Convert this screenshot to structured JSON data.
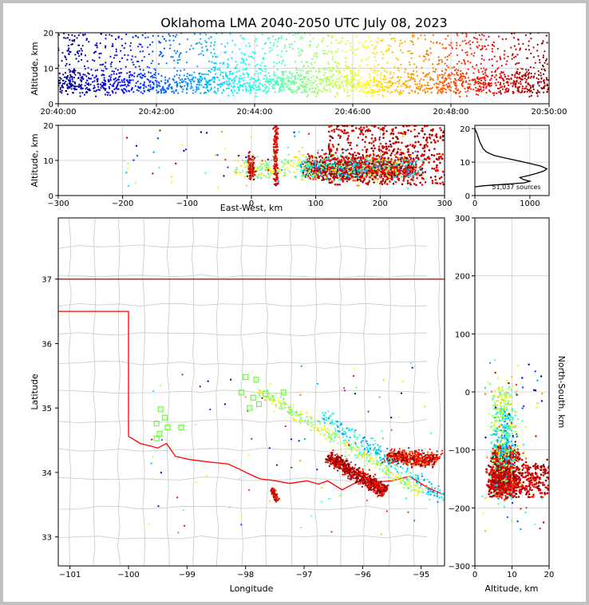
{
  "title": "Oklahoma LMA 2040-2050 UTC July 08, 2023",
  "chart_data": [
    {
      "panel": "time-altitude",
      "type": "scatter",
      "color_scale": "jet (by time)",
      "xlabel": "",
      "ylabel": "Altitude, km",
      "x_range": [
        "20:40:00",
        "20:50:00"
      ],
      "x_ticks": [
        "20:40:00",
        "20:42:00",
        "20:44:00",
        "20:46:00",
        "20:48:00",
        "20:50:00"
      ],
      "ylim": [
        0,
        20
      ],
      "y_ticks": [
        "0",
        "10",
        "20"
      ],
      "grid": true
    },
    {
      "panel": "east-west-altitude",
      "type": "scatter",
      "xlabel": "East-West, km",
      "ylabel": "Altitude, km",
      "xlim": [
        -300,
        300
      ],
      "x_ticks": [
        "−300",
        "−200",
        "−100",
        "0",
        "100",
        "200",
        "300"
      ],
      "ylim": [
        0,
        20
      ],
      "y_ticks": [
        "0",
        "10",
        "20"
      ],
      "grid": true
    },
    {
      "panel": "altitude-histogram",
      "type": "line",
      "xlabel": "",
      "ylabel": "",
      "xlim": [
        0,
        1350
      ],
      "x_ticks": [
        "0",
        "1000"
      ],
      "ylim": [
        0,
        21
      ],
      "y_ticks": [
        "0",
        "10",
        "20"
      ],
      "annotation": "51,037 sources",
      "profile": [
        {
          "alt": 2.6,
          "count": 0
        },
        {
          "alt": 2.9,
          "count": 150
        },
        {
          "alt": 3.4,
          "count": 550
        },
        {
          "alt": 3.8,
          "count": 900
        },
        {
          "alt": 4.3,
          "count": 1000
        },
        {
          "alt": 4.8,
          "count": 880
        },
        {
          "alt": 5.4,
          "count": 820
        },
        {
          "alt": 6.0,
          "count": 980
        },
        {
          "alt": 6.6,
          "count": 1120
        },
        {
          "alt": 7.3,
          "count": 1250
        },
        {
          "alt": 8.0,
          "count": 1310
        },
        {
          "alt": 8.8,
          "count": 1200
        },
        {
          "alt": 9.6,
          "count": 1000
        },
        {
          "alt": 10.4,
          "count": 780
        },
        {
          "alt": 11.2,
          "count": 560
        },
        {
          "alt": 12.0,
          "count": 350
        },
        {
          "alt": 13.0,
          "count": 210
        },
        {
          "alt": 14.0,
          "count": 150
        },
        {
          "alt": 15.0,
          "count": 120
        },
        {
          "alt": 16.0,
          "count": 90
        },
        {
          "alt": 17.0,
          "count": 70
        },
        {
          "alt": 18.0,
          "count": 50
        },
        {
          "alt": 18.7,
          "count": 35
        },
        {
          "alt": 19.4,
          "count": 15
        },
        {
          "alt": 20.0,
          "count": 0
        }
      ]
    },
    {
      "panel": "plan-view",
      "type": "scatter",
      "xlabel": "Longitude",
      "ylabel": "Latitude",
      "xlim": [
        -101.2,
        -94.6
      ],
      "x_ticks": [
        "−101",
        "−100",
        "−99",
        "−98",
        "−97",
        "−96",
        "−95"
      ],
      "ylim": [
        32.55,
        37.95
      ],
      "y_ticks": [
        "33",
        "34",
        "35",
        "36",
        "37"
      ],
      "marker_colors": {
        "state_border": "#ff0000",
        "county_lines": "#c8c8c8",
        "stations": "#66ff33"
      },
      "stations": [
        {
          "lon": -99.45,
          "lat": 34.98
        },
        {
          "lon": -99.38,
          "lat": 34.85
        },
        {
          "lon": -99.52,
          "lat": 34.76
        },
        {
          "lon": -99.33,
          "lat": 34.7
        },
        {
          "lon": -99.47,
          "lat": 34.6
        },
        {
          "lon": -99.52,
          "lat": 34.53
        },
        {
          "lon": -99.1,
          "lat": 34.7
        },
        {
          "lon": -98.0,
          "lat": 35.48
        },
        {
          "lon": -97.82,
          "lat": 35.44
        },
        {
          "lon": -98.07,
          "lat": 35.24
        },
        {
          "lon": -97.87,
          "lat": 35.16
        },
        {
          "lon": -97.77,
          "lat": 35.06
        },
        {
          "lon": -97.93,
          "lat": 35.0
        },
        {
          "lon": -97.66,
          "lat": 35.22
        },
        {
          "lon": -97.35,
          "lat": 35.24
        }
      ],
      "grid": true
    },
    {
      "panel": "altitude-north-south",
      "type": "scatter",
      "xlabel": "Altitude, km",
      "ylabel": "North-South, km",
      "xlim": [
        0,
        20
      ],
      "x_ticks": [
        "0",
        "10",
        "20"
      ],
      "ylim": [
        -300,
        300
      ],
      "y_ticks": [
        "−300",
        "−200",
        "−100",
        "0",
        "100",
        "200",
        "300"
      ],
      "grid": true
    }
  ]
}
